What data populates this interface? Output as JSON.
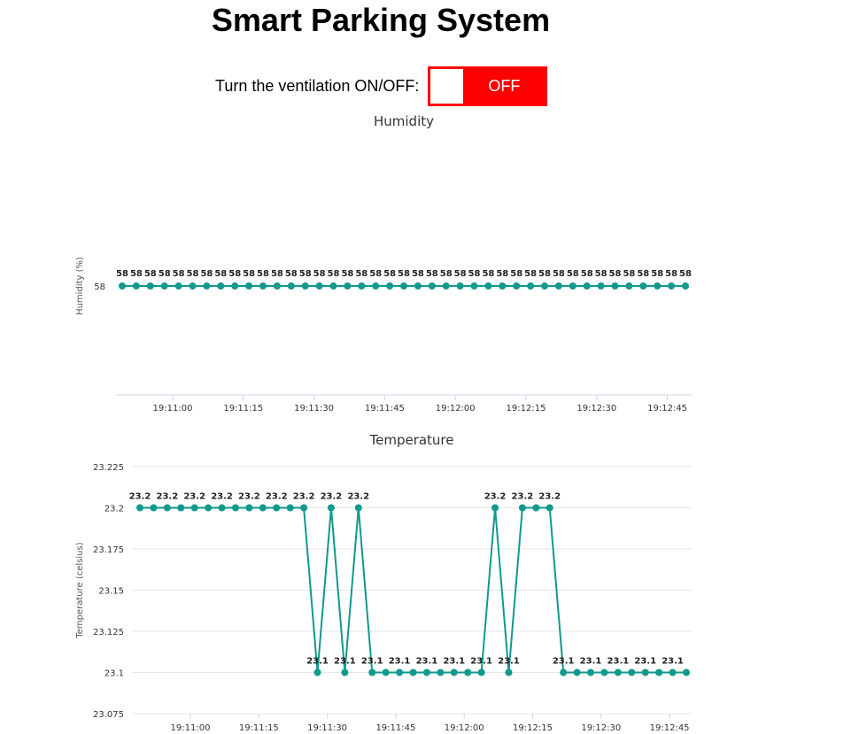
{
  "header": {
    "title": "Smart Parking System"
  },
  "ventilation": {
    "label": "Turn the ventilation ON/OFF:",
    "state": "OFF",
    "color": "#ff0000"
  },
  "series_color": "#11998e",
  "chart_data": [
    {
      "type": "line",
      "title": "Humidity",
      "ylabel": "Humidity (%)",
      "xlabel": "",
      "x_start": "18:10:54",
      "x_step_seconds": 2,
      "x_tick_labels": [
        "19:11:00",
        "19:11:15",
        "19:11:30",
        "19:11:45",
        "19:12:00",
        "19:12:15",
        "19:12:30",
        "19:12:45"
      ],
      "y_tick_labels": [
        "58"
      ],
      "ylim": [
        57,
        59
      ],
      "grid": true,
      "values": [
        58,
        58,
        58,
        58,
        58,
        58,
        58,
        58,
        58,
        58,
        58,
        58,
        58,
        58,
        58,
        58,
        58,
        58,
        58,
        58,
        58,
        58,
        58,
        58,
        58,
        58,
        58,
        58,
        58,
        58,
        58,
        58,
        58,
        58,
        58,
        58,
        58,
        58,
        58,
        58,
        58
      ]
    },
    {
      "type": "line",
      "title": "Temperature",
      "ylabel": "Temperature (celsius)",
      "xlabel": "",
      "x_start": "18:10:54",
      "x_step_seconds": 3,
      "x_tick_labels": [
        "19:11:00",
        "19:11:15",
        "19:11:30",
        "19:11:45",
        "19:12:00",
        "19:12:15",
        "19:12:30",
        "19:12:45"
      ],
      "y_tick_labels": [
        "23.225",
        "23.2",
        "23.175",
        "23.15",
        "23.125",
        "23.1",
        "23.075"
      ],
      "ylim": [
        23.075,
        23.225
      ],
      "grid": true,
      "values": [
        23.2,
        23.2,
        23.2,
        23.2,
        23.2,
        23.2,
        23.2,
        23.2,
        23.2,
        23.2,
        23.2,
        23.2,
        23.2,
        23.1,
        23.2,
        23.1,
        23.2,
        23.1,
        23.1,
        23.1,
        23.1,
        23.1,
        23.1,
        23.1,
        23.1,
        23.1,
        23.2,
        23.1,
        23.2,
        23.2,
        23.2,
        23.1,
        23.1,
        23.1,
        23.1,
        23.1,
        23.1,
        23.1,
        23.1,
        23.1,
        23.1
      ],
      "labels": [
        "23.2",
        "",
        "23.2",
        "",
        "23.2",
        "",
        "23.2",
        "",
        "23.2",
        "",
        "23.2",
        "",
        "23.2",
        "23.1",
        "23.2",
        "23.1",
        "23.2",
        "23.1",
        "",
        "23.1",
        "",
        "23.1",
        "",
        "23.1",
        "",
        "23.1",
        "23.2",
        "23.1",
        "23.2",
        "",
        "23.2",
        "23.1",
        "",
        "23.1",
        "",
        "23.1",
        "",
        "23.1",
        "",
        "23.1",
        ""
      ]
    }
  ]
}
